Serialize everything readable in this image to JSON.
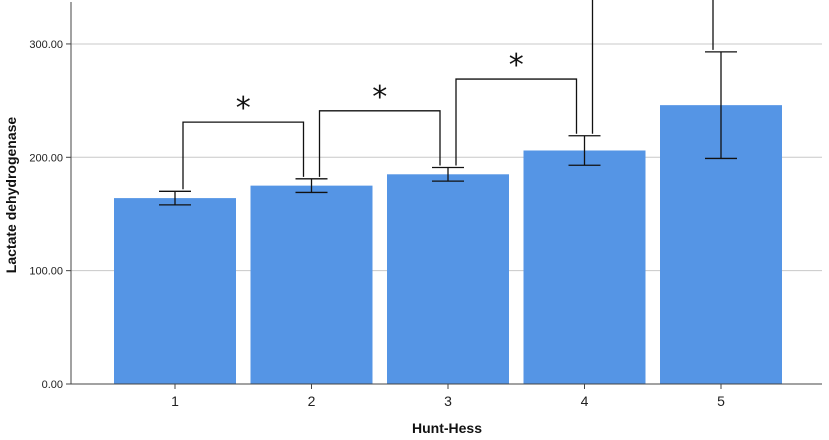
{
  "chart_data": {
    "type": "bar",
    "categories": [
      "1",
      "2",
      "3",
      "4",
      "5"
    ],
    "values": [
      164,
      175,
      185,
      206,
      246
    ],
    "error_low": [
      158,
      169,
      179,
      193,
      199
    ],
    "error_high": [
      170,
      181,
      191,
      219,
      293
    ],
    "xlabel": "Hunt-Hess",
    "ylabel": "Lactate dehydrogenase",
    "ylim": [
      0,
      337
    ],
    "yticks": [
      0,
      100,
      200,
      300
    ],
    "ytick_labels": [
      "0.00",
      "100.00",
      "200.00",
      "300.00"
    ],
    "grid": true,
    "bar_color": "#5595e5",
    "significance": [
      {
        "from": "1",
        "to": "2",
        "label": "*"
      },
      {
        "from": "2",
        "to": "3",
        "label": "*"
      },
      {
        "from": "3",
        "to": "4",
        "label": "*"
      },
      {
        "from": "4",
        "to": "5",
        "label": "*"
      }
    ]
  }
}
